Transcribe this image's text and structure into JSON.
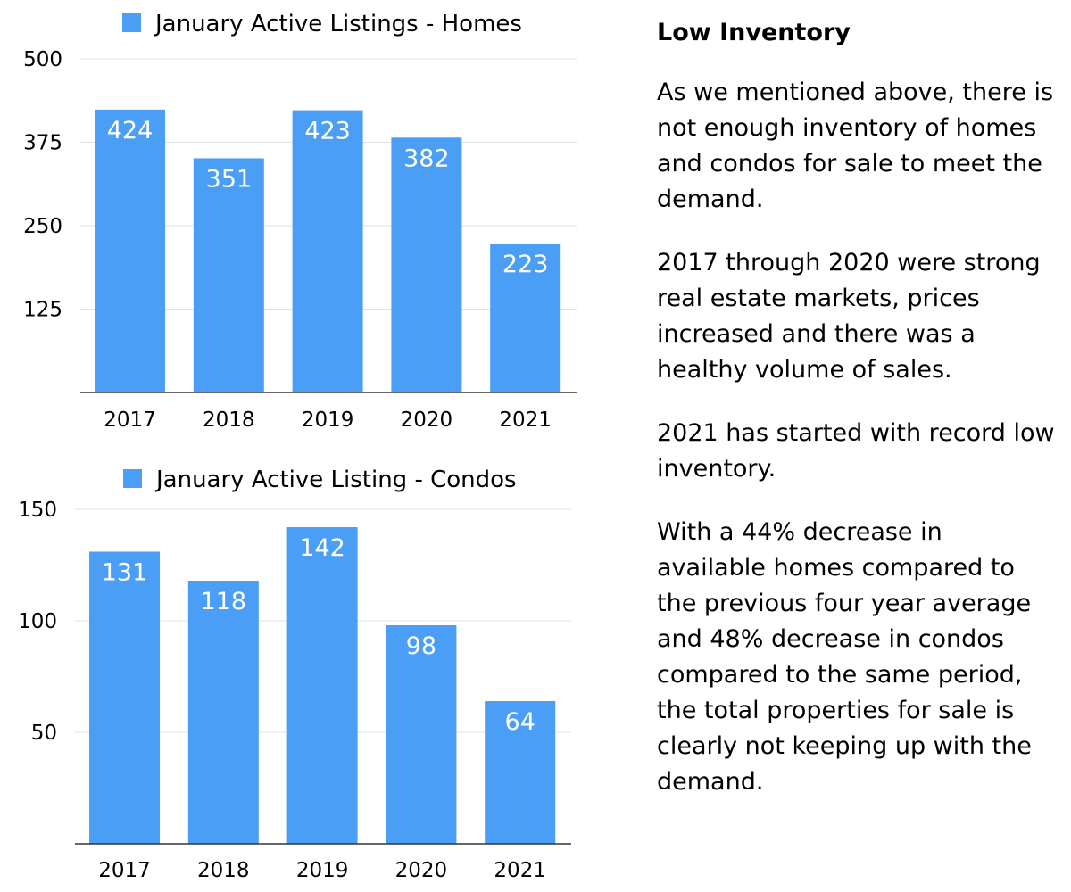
{
  "chart_data": [
    {
      "type": "bar",
      "legend": "January Active Listings - Homes",
      "categories": [
        "2017",
        "2018",
        "2019",
        "2020",
        "2021"
      ],
      "values": [
        424,
        351,
        423,
        382,
        223
      ],
      "data_labels": [
        "424",
        "351",
        "423",
        "382",
        "223"
      ],
      "yticks": [
        "500",
        "375",
        "250",
        "125"
      ],
      "ytick_values": [
        500,
        375,
        250,
        125
      ],
      "ylim": [
        0,
        500
      ],
      "grid": true,
      "legend_position": "top",
      "color": "#4a9ef5"
    },
    {
      "type": "bar",
      "legend": "January Active Listing - Condos",
      "categories": [
        "2017",
        "2018",
        "2019",
        "2020",
        "2021"
      ],
      "values": [
        131,
        118,
        142,
        98,
        64
      ],
      "data_labels": [
        "131",
        "118",
        "142",
        "98",
        "64"
      ],
      "yticks": [
        "150",
        "100",
        "50"
      ],
      "ytick_values": [
        150,
        100,
        50
      ],
      "ylim": [
        0,
        150
      ],
      "grid": true,
      "legend_position": "top",
      "color": "#4a9ef5"
    }
  ],
  "side": {
    "heading": "Low Inventory",
    "paragraphs": [
      "As we mentioned above, there is not enough inventory of homes and condos for sale to meet the demand.",
      "2017 through 2020 were strong real estate markets, prices increased and there was a healthy volume of sales.",
      "2021 has started with record low inventory.",
      "With a 44% decrease in available homes compared to the previous four year average and 48% decrease in condos compared to the same period, the total properties for sale is clearly not keeping up with the demand."
    ]
  }
}
